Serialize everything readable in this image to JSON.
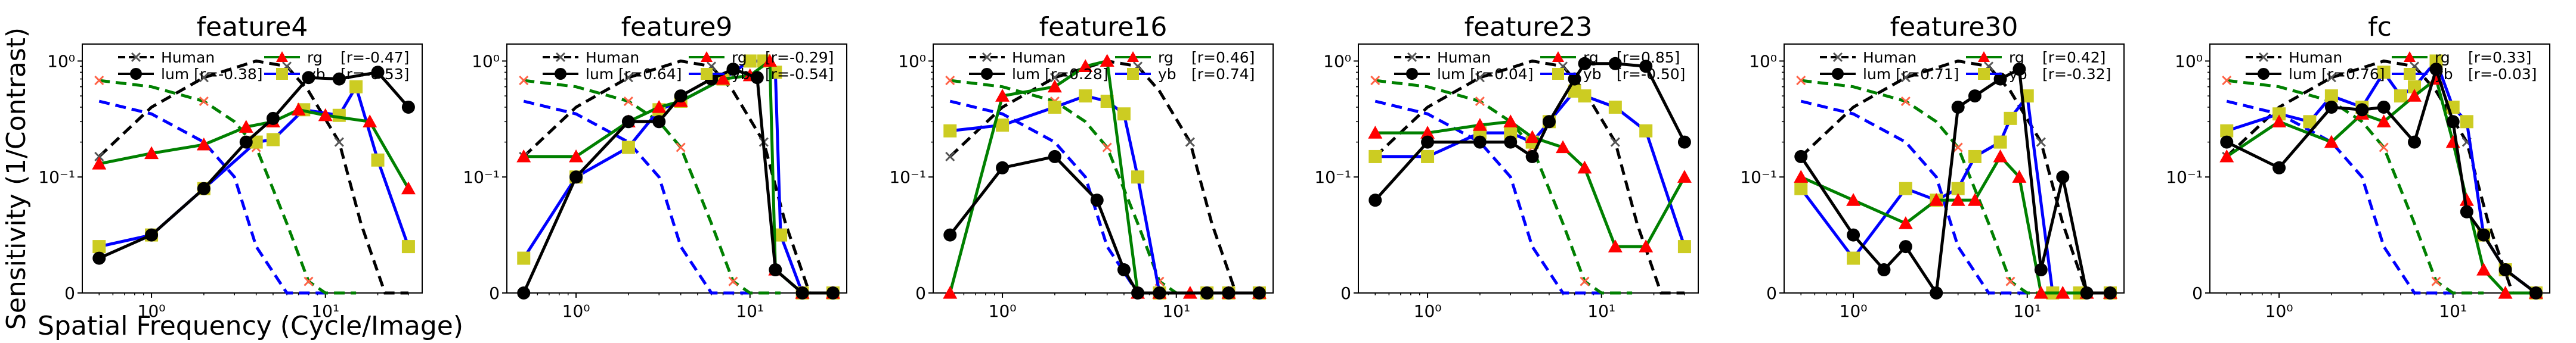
{
  "figure": {
    "ylabel": "Sensitivity (1/Contrast)",
    "xlabel": "Spatial Frequency (Cycle/Image)",
    "yticks": [
      "10⁰",
      "10⁻¹",
      "0"
    ],
    "xticks": [
      "10⁰",
      "10¹"
    ]
  },
  "colors": {
    "lum": "#000000",
    "rg": "#008000",
    "yb": "#0000ff",
    "rg_marker": "#ff0000",
    "yb_marker": "#cccc22",
    "human_marker": "#ff6347",
    "human": "#000000"
  },
  "chart_data": [
    {
      "type": "line",
      "title": "feature4",
      "x_scale": "log",
      "y_scale": "symlog",
      "x": [
        0.5,
        1.0,
        2.0,
        3.0,
        4.0,
        6.0,
        8.0,
        16.0,
        30.0
      ],
      "legend": {
        "human": "Human",
        "lum": "lum [r=-0.38]",
        "rg": "rg",
        "rg_r": "[r=-0.47]",
        "yb": "yb",
        "yb_r": "[r=-0.53]"
      },
      "series": [
        {
          "name": "lum",
          "x": [
            0.5,
            1.0,
            2.0,
            3.5,
            5.0,
            8.0,
            12.0,
            20.0,
            30.0
          ],
          "values": [
            0.03,
            0.05,
            0.09,
            0.2,
            0.32,
            0.72,
            0.7,
            0.8,
            0.4
          ]
        },
        {
          "name": "rg",
          "x": [
            0.5,
            1.0,
            2.0,
            3.5,
            5.0,
            7.0,
            10.0,
            18.0,
            30.0
          ],
          "values": [
            0.13,
            0.16,
            0.19,
            0.27,
            0.3,
            0.38,
            0.34,
            0.3,
            0.09
          ]
        },
        {
          "name": "yb",
          "x": [
            0.5,
            1.0,
            2.0,
            4.0,
            5.0,
            7.5,
            12.0,
            15.0,
            20.0,
            30.0
          ],
          "values": [
            0.04,
            0.05,
            0.09,
            0.2,
            0.21,
            0.38,
            0.34,
            0.6,
            0.14,
            0.04
          ]
        },
        {
          "name": "Human",
          "x": [
            0.5,
            1.0,
            2.0,
            4.0,
            6.0,
            8.0,
            12.0,
            16.0,
            22.0,
            30.0
          ],
          "values": [
            0.15,
            0.4,
            0.72,
            1.0,
            0.9,
            0.55,
            0.2,
            0.06,
            0.0,
            0.0
          ]
        },
        {
          "name": "rg_human",
          "x": [
            0.5,
            1.0,
            2.0,
            3.0,
            4.0,
            6.0,
            8.0,
            10.0,
            15.0
          ],
          "values": [
            0.68,
            0.6,
            0.45,
            0.3,
            0.18,
            0.06,
            0.01,
            0.0,
            0.0
          ]
        },
        {
          "name": "yb_human",
          "x": [
            0.5,
            1.0,
            2.0,
            3.0,
            4.0,
            6.0,
            8.0,
            10.0
          ],
          "values": [
            0.45,
            0.35,
            0.2,
            0.1,
            0.04,
            0.0,
            0.0,
            0.0
          ]
        }
      ]
    },
    {
      "type": "line",
      "title": "feature9",
      "x_scale": "log",
      "y_scale": "symlog",
      "legend": {
        "human": "Human",
        "lum": "lum [r=0.64]",
        "rg": "rg",
        "rg_r": "[r=-0.29]",
        "yb": "yb",
        "yb_r": "[r=-0.54]"
      },
      "series": [
        {
          "name": "lum",
          "x": [
            0.5,
            1.0,
            2.0,
            3.0,
            4.0,
            6.0,
            8.0,
            11.0,
            14.0,
            20.0,
            30.0
          ],
          "values": [
            0.0,
            0.1,
            0.3,
            0.3,
            0.5,
            0.7,
            0.85,
            0.72,
            0.02,
            0.0,
            0.0
          ]
        },
        {
          "name": "rg",
          "x": [
            0.5,
            1.0,
            2.0,
            3.0,
            4.0,
            7.0,
            10.0,
            13.0,
            14.0,
            20.0,
            30.0
          ],
          "values": [
            0.15,
            0.15,
            0.3,
            0.4,
            0.45,
            0.7,
            0.75,
            1.0,
            0.02,
            0.0,
            0.0
          ]
        },
        {
          "name": "yb",
          "x": [
            0.5,
            1.0,
            2.0,
            3.0,
            4.0,
            7.0,
            10.0,
            12.0,
            14.0,
            15.0,
            20.0,
            30.0
          ],
          "values": [
            0.03,
            0.1,
            0.18,
            0.38,
            0.45,
            0.7,
            1.0,
            1.0,
            0.8,
            0.05,
            0.0,
            0.0
          ]
        },
        {
          "name": "Human",
          "x": [
            0.5,
            1.0,
            2.0,
            4.0,
            6.0,
            8.0,
            12.0,
            16.0,
            22.0,
            30.0
          ],
          "values": [
            0.15,
            0.4,
            0.72,
            1.0,
            0.9,
            0.55,
            0.2,
            0.06,
            0.0,
            0.0
          ]
        },
        {
          "name": "rg_human",
          "x": [
            0.5,
            1.0,
            2.0,
            3.0,
            4.0,
            6.0,
            8.0,
            10.0,
            15.0
          ],
          "values": [
            0.68,
            0.6,
            0.45,
            0.3,
            0.18,
            0.06,
            0.01,
            0.0,
            0.0
          ]
        },
        {
          "name": "yb_human",
          "x": [
            0.5,
            1.0,
            2.0,
            3.0,
            4.0,
            6.0,
            8.0,
            10.0
          ],
          "values": [
            0.45,
            0.35,
            0.2,
            0.1,
            0.04,
            0.0,
            0.0,
            0.0
          ]
        }
      ]
    },
    {
      "type": "line",
      "title": "feature16",
      "x_scale": "log",
      "y_scale": "symlog",
      "legend": {
        "human": "Human",
        "lum": "lum [r=0.28]",
        "rg": "rg",
        "rg_r": "[r=0.46]",
        "yb": "yb",
        "yb_r": "[r=0.74]"
      },
      "series": [
        {
          "name": "lum",
          "x": [
            0.5,
            1.0,
            2.0,
            3.5,
            5.0,
            6.0,
            8.0,
            15.0,
            20.0,
            30.0
          ],
          "values": [
            0.05,
            0.12,
            0.15,
            0.08,
            0.02,
            0.0,
            0.0,
            0.0,
            0.0,
            0.0
          ]
        },
        {
          "name": "rg",
          "x": [
            0.5,
            1.0,
            2.0,
            3.0,
            4.0,
            6.0,
            8.0,
            12.0,
            20.0,
            30.0
          ],
          "values": [
            0.0,
            0.5,
            0.6,
            0.9,
            1.0,
            0.0,
            0.0,
            0.0,
            0.0,
            0.0
          ]
        },
        {
          "name": "yb",
          "x": [
            0.5,
            1.0,
            2.0,
            3.0,
            4.0,
            5.0,
            6.0,
            8.0,
            15.0,
            20.0,
            30.0
          ],
          "values": [
            0.25,
            0.28,
            0.4,
            0.5,
            0.45,
            0.35,
            0.1,
            0.0,
            0.0,
            0.0,
            0.0
          ]
        },
        {
          "name": "Human",
          "x": [
            0.5,
            1.0,
            2.0,
            4.0,
            6.0,
            8.0,
            12.0,
            16.0,
            22.0,
            30.0
          ],
          "values": [
            0.15,
            0.4,
            0.72,
            1.0,
            0.9,
            0.55,
            0.2,
            0.06,
            0.0,
            0.0
          ]
        },
        {
          "name": "rg_human",
          "x": [
            0.5,
            1.0,
            2.0,
            3.0,
            4.0,
            6.0,
            8.0,
            10.0,
            15.0
          ],
          "values": [
            0.68,
            0.6,
            0.45,
            0.3,
            0.18,
            0.06,
            0.01,
            0.0,
            0.0
          ]
        },
        {
          "name": "yb_human",
          "x": [
            0.5,
            1.0,
            2.0,
            3.0,
            4.0,
            6.0,
            8.0,
            10.0
          ],
          "values": [
            0.45,
            0.35,
            0.2,
            0.1,
            0.04,
            0.0,
            0.0,
            0.0
          ]
        }
      ]
    },
    {
      "type": "line",
      "title": "feature23",
      "x_scale": "log",
      "y_scale": "symlog",
      "legend": {
        "human": "Human",
        "lum": "lum [r=0.04]",
        "rg": "rg",
        "rg_r": "[r=0.85]",
        "yb": "yb",
        "yb_r": "[r=-0.50]"
      },
      "series": [
        {
          "name": "lum",
          "x": [
            0.5,
            1.0,
            2.0,
            3.0,
            4.0,
            5.0,
            7.0,
            8.0,
            12.0,
            18.0,
            30.0
          ],
          "values": [
            0.08,
            0.2,
            0.2,
            0.2,
            0.15,
            0.3,
            0.7,
            0.95,
            0.95,
            0.9,
            0.2
          ]
        },
        {
          "name": "rg",
          "x": [
            0.5,
            1.0,
            2.0,
            3.0,
            4.0,
            6.0,
            8.0,
            12.0,
            18.0,
            30.0
          ],
          "values": [
            0.24,
            0.24,
            0.28,
            0.3,
            0.22,
            0.18,
            0.12,
            0.04,
            0.04,
            0.1
          ]
        },
        {
          "name": "yb",
          "x": [
            0.5,
            1.0,
            2.0,
            3.0,
            4.0,
            5.0,
            7.0,
            8.0,
            12.0,
            18.0,
            30.0
          ],
          "values": [
            0.15,
            0.15,
            0.24,
            0.24,
            0.2,
            0.3,
            0.55,
            0.5,
            0.4,
            0.25,
            0.04
          ]
        },
        {
          "name": "Human",
          "x": [
            0.5,
            1.0,
            2.0,
            4.0,
            6.0,
            8.0,
            12.0,
            16.0,
            22.0,
            30.0
          ],
          "values": [
            0.15,
            0.4,
            0.72,
            1.0,
            0.9,
            0.55,
            0.2,
            0.06,
            0.0,
            0.0
          ]
        },
        {
          "name": "rg_human",
          "x": [
            0.5,
            1.0,
            2.0,
            3.0,
            4.0,
            6.0,
            8.0,
            10.0,
            15.0
          ],
          "values": [
            0.68,
            0.6,
            0.45,
            0.3,
            0.18,
            0.06,
            0.01,
            0.0,
            0.0
          ]
        },
        {
          "name": "yb_human",
          "x": [
            0.5,
            1.0,
            2.0,
            3.0,
            4.0,
            6.0,
            8.0,
            10.0
          ],
          "values": [
            0.45,
            0.35,
            0.2,
            0.1,
            0.04,
            0.0,
            0.0,
            0.0
          ]
        }
      ]
    },
    {
      "type": "line",
      "title": "feature30",
      "x_scale": "log",
      "y_scale": "symlog",
      "legend": {
        "human": "Human",
        "lum": "lum [r=0.71]",
        "rg": "rg",
        "rg_r": "[r=0.42]",
        "yb": "yb",
        "yb_r": "[r=-0.32]"
      },
      "series": [
        {
          "name": "lum",
          "x": [
            0.5,
            1.0,
            1.5,
            2.0,
            3.0,
            4.0,
            5.0,
            7.0,
            9.0,
            12.0,
            16.0,
            22.0,
            30.0
          ],
          "values": [
            0.15,
            0.05,
            0.02,
            0.04,
            0.0,
            0.4,
            0.5,
            0.7,
            0.85,
            0.02,
            0.1,
            0.0,
            0.0
          ]
        },
        {
          "name": "rg",
          "x": [
            0.5,
            1.0,
            2.0,
            3.0,
            4.0,
            5.0,
            7.0,
            9.0,
            12.0,
            16.0,
            22.0,
            30.0
          ],
          "values": [
            0.1,
            0.08,
            0.06,
            0.08,
            0.08,
            0.08,
            0.15,
            0.1,
            0.0,
            0.0,
            0.0,
            0.0
          ]
        },
        {
          "name": "yb",
          "x": [
            0.5,
            1.0,
            2.0,
            3.0,
            4.0,
            5.0,
            7.0,
            8.0,
            10.0,
            14.0,
            20.0,
            30.0
          ],
          "values": [
            0.09,
            0.03,
            0.09,
            0.08,
            0.09,
            0.15,
            0.2,
            0.32,
            0.5,
            0.0,
            0.0,
            0.0
          ]
        },
        {
          "name": "Human",
          "x": [
            0.5,
            1.0,
            2.0,
            4.0,
            6.0,
            8.0,
            12.0,
            16.0,
            22.0,
            30.0
          ],
          "values": [
            0.15,
            0.4,
            0.72,
            1.0,
            0.9,
            0.55,
            0.2,
            0.06,
            0.0,
            0.0
          ]
        },
        {
          "name": "rg_human",
          "x": [
            0.5,
            1.0,
            2.0,
            3.0,
            4.0,
            6.0,
            8.0,
            10.0,
            15.0
          ],
          "values": [
            0.68,
            0.6,
            0.45,
            0.3,
            0.18,
            0.06,
            0.01,
            0.0,
            0.0
          ]
        },
        {
          "name": "yb_human",
          "x": [
            0.5,
            1.0,
            2.0,
            3.0,
            4.0,
            6.0,
            8.0,
            10.0
          ],
          "values": [
            0.45,
            0.35,
            0.2,
            0.1,
            0.04,
            0.0,
            0.0,
            0.0
          ]
        }
      ]
    },
    {
      "type": "line",
      "title": "fc",
      "x_scale": "log",
      "y_scale": "symlog",
      "legend": {
        "human": "Human",
        "lum": "lum [r=0.76]",
        "rg": "rg",
        "rg_r": "[r=0.33]",
        "yb": "yb",
        "yb_r": "[r=-0.03]"
      },
      "series": [
        {
          "name": "lum",
          "x": [
            0.5,
            1.0,
            2.0,
            3.0,
            4.0,
            6.0,
            8.0,
            10.0,
            12.0,
            15.0,
            20.0,
            30.0
          ],
          "values": [
            0.2,
            0.12,
            0.4,
            0.38,
            0.4,
            0.2,
            0.85,
            0.3,
            0.07,
            0.05,
            0.02,
            0.0
          ]
        },
        {
          "name": "rg",
          "x": [
            0.5,
            1.0,
            2.0,
            3.0,
            4.0,
            6.0,
            8.0,
            10.0,
            12.0,
            15.0,
            20.0,
            30.0
          ],
          "values": [
            0.15,
            0.3,
            0.2,
            0.35,
            0.3,
            0.5,
            0.7,
            0.2,
            0.08,
            0.02,
            0.0,
            0.0
          ]
        },
        {
          "name": "yb",
          "x": [
            0.5,
            1.0,
            1.5,
            2.0,
            3.0,
            4.0,
            5.0,
            6.0,
            8.0,
            10.0,
            12.0,
            15.0,
            20.0,
            30.0
          ],
          "values": [
            0.25,
            0.35,
            0.3,
            0.5,
            0.4,
            0.8,
            0.5,
            0.6,
            1.0,
            0.4,
            0.3,
            0.05,
            0.02,
            0.0
          ]
        },
        {
          "name": "Human",
          "x": [
            0.5,
            1.0,
            2.0,
            4.0,
            6.0,
            8.0,
            12.0,
            16.0,
            22.0,
            30.0
          ],
          "values": [
            0.15,
            0.4,
            0.72,
            1.0,
            0.9,
            0.55,
            0.2,
            0.06,
            0.0,
            0.0
          ]
        },
        {
          "name": "rg_human",
          "x": [
            0.5,
            1.0,
            2.0,
            3.0,
            4.0,
            6.0,
            8.0,
            10.0,
            15.0
          ],
          "values": [
            0.68,
            0.6,
            0.45,
            0.3,
            0.18,
            0.06,
            0.01,
            0.0,
            0.0
          ]
        },
        {
          "name": "yb_human",
          "x": [
            0.5,
            1.0,
            2.0,
            3.0,
            4.0,
            6.0,
            8.0,
            10.0
          ],
          "values": [
            0.45,
            0.35,
            0.2,
            0.1,
            0.04,
            0.0,
            0.0,
            0.0
          ]
        }
      ]
    }
  ]
}
